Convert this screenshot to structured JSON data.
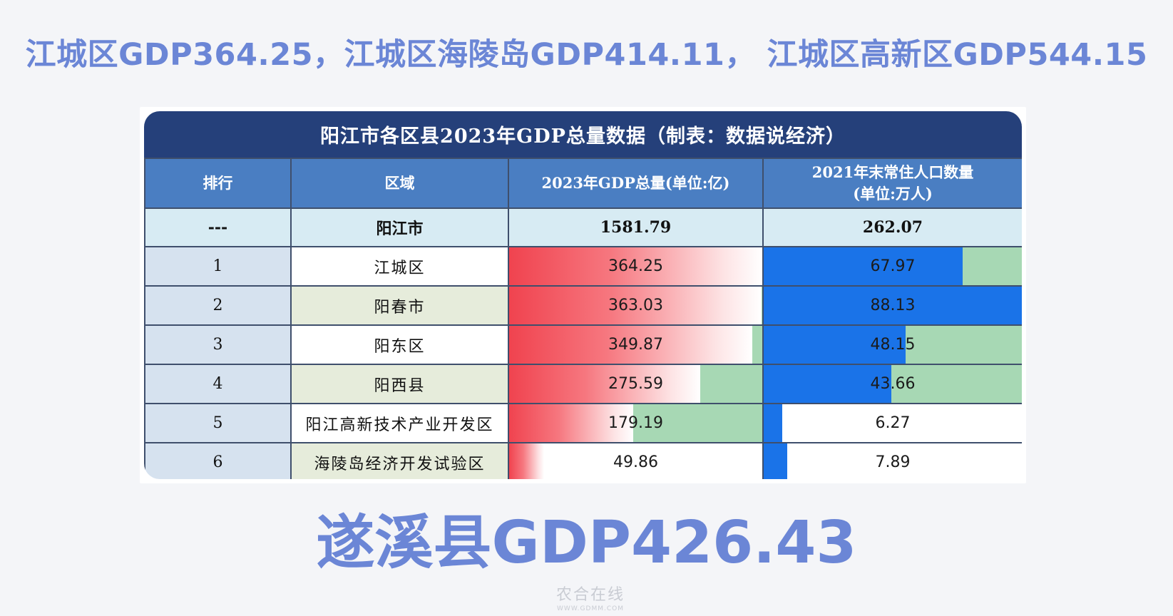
{
  "headline": "江城区GDP364.25，江城区海陵岛GDP414.11， 江城区高新区GDP544.15",
  "table": {
    "title": "阳江市各区县2023年GDP总量数据（制表：数据说经济）",
    "headers": {
      "rank": "排行",
      "area": "区域",
      "gdp": "2023年GDP总量(单位:亿)",
      "pop_line1": "2021年末常住人口数量",
      "pop_line2": "(单位:万人)"
    },
    "city_row": {
      "rank": "---",
      "area": "阳江市",
      "gdp": "1581.79",
      "pop": "262.07"
    },
    "rows": [
      {
        "rank": "1",
        "area": "江城区",
        "gdp": "364.25",
        "pop": "67.97",
        "gdp_fill": 1.0,
        "pop_fill": 0.77,
        "pop_bg": "green"
      },
      {
        "rank": "2",
        "area": "阳春市",
        "gdp": "363.03",
        "pop": "88.13",
        "gdp_fill": 0.996,
        "pop_fill": 1.0,
        "pop_bg": "green"
      },
      {
        "rank": "3",
        "area": "阳东区",
        "gdp": "349.87",
        "pop": "48.15",
        "gdp_fill": 0.96,
        "pop_fill": 0.55,
        "pop_bg": "green"
      },
      {
        "rank": "4",
        "area": "阳西县",
        "gdp": "275.59",
        "pop": "43.66",
        "gdp_fill": 0.756,
        "pop_fill": 0.495,
        "pop_bg": "green"
      },
      {
        "rank": "5",
        "area": "阳江高新技术产业开发区",
        "gdp": "179.19",
        "pop": "6.27",
        "gdp_fill": 0.49,
        "pop_fill": 0.071,
        "pop_bg": "white"
      },
      {
        "rank": "6",
        "area": "海陵岛经济开发试验区",
        "gdp": "49.86",
        "pop": "7.89",
        "gdp_fill": 0.137,
        "pop_fill": 0.09,
        "pop_bg": "white"
      }
    ]
  },
  "big_text": "遂溪县GDP426.43",
  "watermark": {
    "main": "农合在线",
    "url": "WWW.GDMM.COM"
  },
  "colors": {
    "headline": "#6b86d6",
    "title_bg": "#25407a",
    "header_bg": "#4a7ec2",
    "gdp_bar": "#f0434f",
    "pop_bar": "#1a73e8",
    "fill_bg": "#a7d8b4"
  }
}
